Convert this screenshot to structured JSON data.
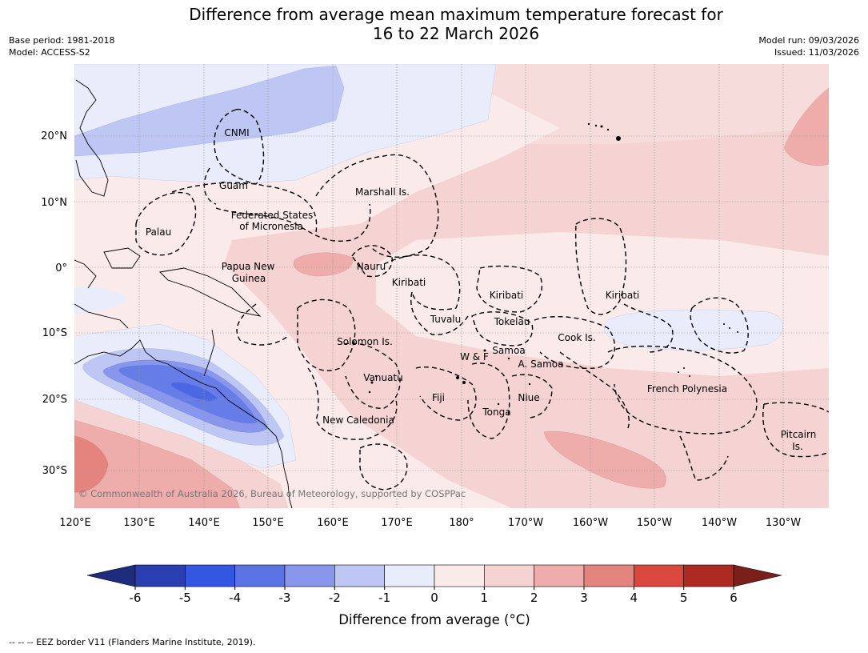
{
  "header": {
    "title_line1": "Difference from average mean maximum temperature forecast for",
    "title_line2": "16 to 22 March 2026",
    "base_period": "Base period: 1981-2018",
    "model": "Model: ACCESS-S2",
    "model_run": "Model run: 09/03/2026",
    "issued": "Issued: 11/03/2026"
  },
  "map": {
    "lon_ticks": [
      "120°E",
      "130°E",
      "140°E",
      "150°E",
      "160°E",
      "170°E",
      "180°",
      "170°W",
      "160°W",
      "150°W",
      "140°W",
      "130°W"
    ],
    "lat_ticks": [
      "20°N",
      "10°N",
      "0°",
      "10°S",
      "20°S",
      "30°S"
    ],
    "copyright": "© Commonwealth of Australia 2026, Bureau of Meteorology, supported by COSPPac",
    "regions": [
      {
        "name": "CNMI"
      },
      {
        "name": "Guam"
      },
      {
        "name": "Marshall Is."
      },
      {
        "name": "Federated States",
        "line2": "of Micronesia"
      },
      {
        "name": "Palau"
      },
      {
        "name": "Papua New",
        "line2": "Guinea"
      },
      {
        "name": "Nauru"
      },
      {
        "name": "Kiribati"
      },
      {
        "name": "Kiribati"
      },
      {
        "name": "Kiribati"
      },
      {
        "name": "Tuvalu"
      },
      {
        "name": "Tokelau"
      },
      {
        "name": "Solomon Is."
      },
      {
        "name": "W & F"
      },
      {
        "name": "Samoa"
      },
      {
        "name": "A. Samoa"
      },
      {
        "name": "Cook Is."
      },
      {
        "name": "Vanuatu"
      },
      {
        "name": "Fiji"
      },
      {
        "name": "Niue"
      },
      {
        "name": "Tonga"
      },
      {
        "name": "New Caledonia"
      },
      {
        "name": "French Polynesia"
      },
      {
        "name": "Pitcairn",
        "line2": "Is."
      }
    ]
  },
  "legend": {
    "ticks": [
      "-6",
      "-5",
      "-4",
      "-3",
      "-2",
      "-1",
      "0",
      "1",
      "2",
      "3",
      "4",
      "5",
      "6"
    ],
    "colors": [
      "#2a3eb1",
      "#3556e0",
      "#5b73e4",
      "#8896ec",
      "#bec7f3",
      "#e8ecfb",
      "#fbeaea",
      "#f5d3d2",
      "#eeadab",
      "#e5847f",
      "#d9473f",
      "#ad2a22"
    ],
    "low_color": "#1e2c7e",
    "high_color": "#7a1f1a",
    "label": "Difference from average (°C)"
  },
  "footer": {
    "border_note": "--  --  -- EEZ border V11 (Flanders Marine Institute, 2019)."
  }
}
